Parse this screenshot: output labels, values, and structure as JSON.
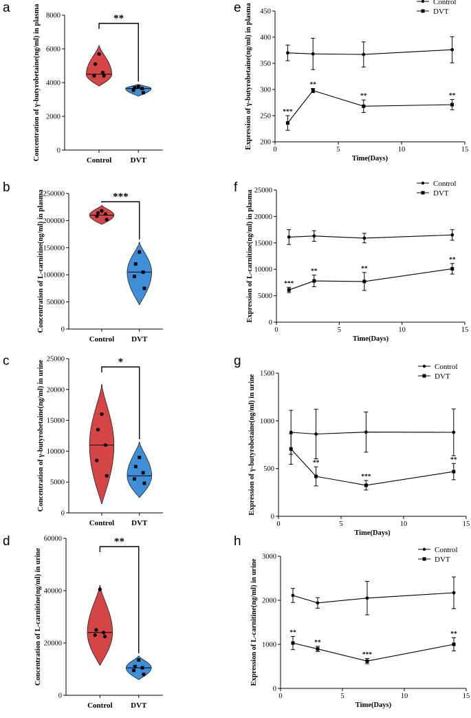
{
  "panels": {
    "a": "a",
    "b": "b",
    "c": "c",
    "d": "d",
    "e": "e",
    "f": "f",
    "g": "g",
    "h": "h"
  },
  "chart_data": [
    {
      "id": "a",
      "type": "violin",
      "ylabel": "Concentration of γ-butyrobetaine(ng/ml) in plasma",
      "ylim": [
        0,
        8000
      ],
      "yticks": [
        "0",
        "2000",
        "4000",
        "6000",
        "8000"
      ],
      "categories": [
        "Control",
        "DVT"
      ],
      "colors": [
        "#d64545",
        "#3f8fd8"
      ],
      "groups": [
        {
          "name": "Control",
          "median": 4500,
          "violin_range": [
            3800,
            6200
          ],
          "points": [
            5700,
            5100,
            4600,
            4400,
            4400
          ]
        },
        {
          "name": "DVT",
          "median": 3650,
          "violin_range": [
            3200,
            3900
          ],
          "points": [
            3750,
            3700,
            3650,
            3550,
            3400
          ]
        }
      ],
      "significance": "**"
    },
    {
      "id": "b",
      "type": "violin",
      "ylabel": "Concentration of L-carnitine(ng/ml) in plasma",
      "ylim": [
        0,
        250000
      ],
      "yticks": [
        "0",
        "50000",
        "100000",
        "150000",
        "200000",
        "250000"
      ],
      "categories": [
        "Control",
        "DVT"
      ],
      "colors": [
        "#d64545",
        "#3f8fd8"
      ],
      "groups": [
        {
          "name": "Control",
          "median": 210000,
          "violin_range": [
            193000,
            228000
          ],
          "points": [
            218000,
            214000,
            212000,
            208000,
            202000
          ]
        },
        {
          "name": "DVT",
          "median": 105000,
          "violin_range": [
            45000,
            160000
          ],
          "points": [
            142000,
            120000,
            105000,
            97000,
            75000
          ]
        }
      ],
      "significance": "***"
    },
    {
      "id": "c",
      "type": "violin",
      "ylabel": "Concentration of γ-butyrobetaine(ng/ml) in urine",
      "ylim": [
        0,
        25000
      ],
      "yticks": [
        "0",
        "5000",
        "10000",
        "15000",
        "20000",
        "25000"
      ],
      "categories": [
        "Control",
        "DVT"
      ],
      "colors": [
        "#d64545",
        "#3f8fd8"
      ],
      "groups": [
        {
          "name": "Control",
          "median": 11000,
          "violin_range": [
            1500,
            20800
          ],
          "points": [
            16000,
            13500,
            11000,
            8500,
            6000
          ]
        },
        {
          "name": "DVT",
          "median": 6000,
          "violin_range": [
            2500,
            11500
          ],
          "points": [
            9000,
            7500,
            6500,
            5500,
            4800
          ]
        }
      ],
      "significance": "*"
    },
    {
      "id": "d",
      "type": "violin",
      "ylabel": "Concentration of L-carnitine(ng/ml) in urine",
      "ylim": [
        0,
        60000
      ],
      "yticks": [
        "0",
        "20000",
        "40000",
        "60000"
      ],
      "categories": [
        "Control",
        "DVT"
      ],
      "colors": [
        "#d64545",
        "#3f8fd8"
      ],
      "groups": [
        {
          "name": "Control",
          "median": 24000,
          "violin_range": [
            11500,
            42000
          ],
          "points": [
            40500,
            25000,
            24000,
            23000,
            22500
          ]
        },
        {
          "name": "DVT",
          "median": 10500,
          "violin_range": [
            6000,
            15000
          ],
          "points": [
            13500,
            11000,
            10500,
            9500,
            8000
          ]
        }
      ],
      "significance": "**"
    },
    {
      "id": "e",
      "type": "line",
      "xlabel": "Time(Days)",
      "ylabel": "Expression of γ-butyrobetaine(ng/ml) in plasma",
      "xlim": [
        0,
        15
      ],
      "ylim": [
        200,
        450
      ],
      "xticks": [
        "0",
        "5",
        "10",
        "15"
      ],
      "yticks": [
        "200",
        "250",
        "300",
        "350",
        "400",
        "450"
      ],
      "legend": [
        "Control",
        "DVT"
      ],
      "series": [
        {
          "name": "Control",
          "marker": "circle",
          "x": [
            1,
            3,
            7,
            14
          ],
          "y": [
            370,
            368,
            367,
            376
          ],
          "err": [
            15,
            30,
            24,
            25
          ]
        },
        {
          "name": "DVT",
          "marker": "square",
          "x": [
            1,
            3,
            7,
            14
          ],
          "y": [
            236,
            298,
            268,
            271
          ],
          "err": [
            14,
            4,
            12,
            10
          ],
          "stars": [
            "***",
            "**",
            "**",
            "**"
          ]
        }
      ]
    },
    {
      "id": "f",
      "type": "line",
      "xlabel": "Time(Days)",
      "ylabel": "Expression of L-carnitine(ng/ml) in plasma",
      "xlim": [
        0,
        15
      ],
      "ylim": [
        0,
        25000
      ],
      "xticks": [
        "0",
        "5",
        "10",
        "15"
      ],
      "yticks": [
        "0",
        "5000",
        "10000",
        "15000",
        "20000",
        "25000"
      ],
      "legend": [
        "Control",
        "DVT"
      ],
      "series": [
        {
          "name": "Control",
          "marker": "circle",
          "x": [
            1,
            3,
            7,
            14
          ],
          "y": [
            16100,
            16300,
            15900,
            16500
          ],
          "err": [
            1400,
            1000,
            900,
            1000
          ]
        },
        {
          "name": "DVT",
          "marker": "square",
          "x": [
            1,
            3,
            7,
            14
          ],
          "y": [
            6100,
            7800,
            7700,
            10100
          ],
          "err": [
            500,
            1100,
            1700,
            1000
          ],
          "stars": [
            "***",
            "**",
            "**",
            "**"
          ]
        }
      ]
    },
    {
      "id": "g",
      "type": "line",
      "xlabel": "Time(Days)",
      "ylabel": "Expression of γ-butyrobetaine(ng/ml) in urine",
      "xlim": [
        0,
        15
      ],
      "ylim": [
        0,
        1500
      ],
      "xticks": [
        "0",
        "5",
        "10",
        "15"
      ],
      "yticks": [
        "0",
        "500",
        "1000",
        "1500"
      ],
      "legend": [
        "Control",
        "DVT"
      ],
      "series": [
        {
          "name": "Control",
          "marker": "circle",
          "x": [
            1,
            3,
            7,
            14
          ],
          "y": [
            880,
            862,
            882,
            880
          ],
          "err": [
            230,
            260,
            210,
            245
          ]
        },
        {
          "name": "DVT",
          "marker": "square",
          "x": [
            1,
            3,
            7,
            14
          ],
          "y": [
            705,
            418,
            325,
            468
          ],
          "err": [
            160,
            100,
            50,
            85
          ],
          "stars": [
            "",
            "**",
            "***",
            "**"
          ]
        }
      ]
    },
    {
      "id": "h",
      "type": "line",
      "xlabel": "Time(Days)",
      "ylabel": "Expression of L-carnitine(ng/ml) in urine",
      "xlim": [
        0,
        15
      ],
      "ylim": [
        0,
        3000
      ],
      "xticks": [
        "0",
        "5",
        "10",
        "15"
      ],
      "yticks": [
        "0",
        "1000",
        "2000",
        "3000"
      ],
      "legend": [
        "Control",
        "DVT"
      ],
      "series": [
        {
          "name": "Control",
          "marker": "circle",
          "x": [
            1,
            3,
            7,
            14
          ],
          "y": [
            2110,
            1940,
            2050,
            2170
          ],
          "err": [
            160,
            120,
            380,
            360
          ]
        },
        {
          "name": "DVT",
          "marker": "square",
          "x": [
            1,
            3,
            7,
            14
          ],
          "y": [
            1030,
            895,
            620,
            1000
          ],
          "err": [
            150,
            60,
            60,
            150
          ],
          "stars": [
            "**",
            "**",
            "***",
            "**"
          ]
        }
      ]
    }
  ]
}
